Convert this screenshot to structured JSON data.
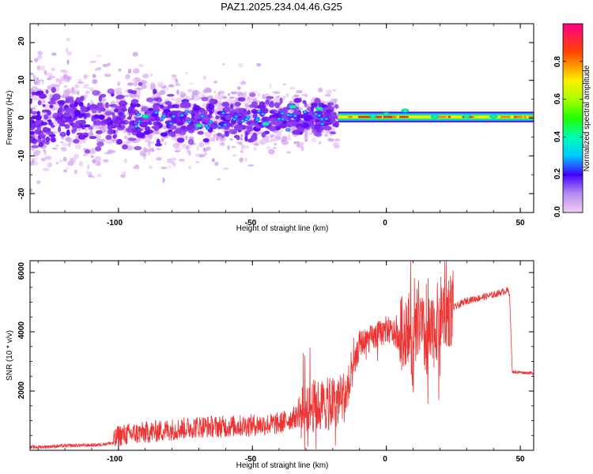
{
  "title": "PAZ1.2025.234.04.46.G25",
  "chart_data": [
    {
      "type": "heatmap",
      "title": "",
      "xlabel": "Height of straight line (km)",
      "ylabel": "Frequency (Hz)",
      "xlim": [
        -133,
        55
      ],
      "ylim": [
        -25,
        25
      ],
      "xticks": [
        -100,
        -50,
        0,
        50
      ],
      "xtick_labels": [
        "-100",
        "-50",
        "0",
        "50"
      ],
      "yticks": [
        -20,
        -10,
        0,
        10,
        20
      ],
      "ytick_labels": [
        "-20",
        "-10",
        "0",
        "10",
        "20"
      ],
      "description_of_structure": {
        "narrow_band": {
          "x_from": -18,
          "x_to": 55,
          "frequency": 0.3,
          "half_width": 1.2
        },
        "scattered_region": {
          "x_from": -133,
          "x_to": -18
        },
        "bright_spots": [
          {
            "x": 30,
            "y": 0.6
          },
          {
            "x": 40,
            "y": 0.4
          },
          {
            "x": 0,
            "y": 1.0
          },
          {
            "x": -5,
            "y": 0.6
          },
          {
            "x": 7,
            "y": 2.0
          },
          {
            "x": 18,
            "y": 0.4
          },
          {
            "x": -25,
            "y": 2.5
          },
          {
            "x": -70,
            "y": -2.0
          },
          {
            "x": -90,
            "y": 0.5
          },
          {
            "x": -45,
            "y": -1.5
          },
          {
            "x": -35,
            "y": 3.0
          }
        ]
      },
      "colorbar": {
        "label": "Normalized spectral amplitude",
        "range": [
          0,
          1
        ],
        "ticks": [
          0.0,
          0.2,
          0.4,
          0.6,
          0.8
        ],
        "tick_labels": [
          "0.0",
          "0.2",
          "0.4",
          "0.6",
          "0.8"
        ]
      }
    },
    {
      "type": "line",
      "title": "",
      "xlabel": "Height of straight line (km)",
      "ylabel": "SNR (10 * v/v)",
      "xlim": [
        -133,
        55
      ],
      "ylim": [
        0,
        6400
      ],
      "xticks": [
        -100,
        -50,
        0,
        50
      ],
      "xtick_labels": [
        "-100",
        "-50",
        "0",
        "50"
      ],
      "yticks": [
        2000,
        4000,
        6000
      ],
      "ytick_labels": [
        "2000",
        "4000",
        "6000"
      ],
      "series": [
        {
          "name": "SNR",
          "color": "#ee3333",
          "x": [
            -133,
            -120,
            -108,
            -102,
            -100,
            -90,
            -80,
            -70,
            -60,
            -50,
            -40,
            -32,
            -30,
            -25,
            -20,
            -16,
            -14,
            -10,
            -5,
            0,
            5,
            8,
            10,
            12,
            14,
            16,
            20,
            25,
            30,
            35,
            40,
            45,
            46,
            47,
            55
          ],
          "values": [
            100,
            150,
            180,
            250,
            500,
            600,
            700,
            800,
            800,
            850,
            900,
            1200,
            1500,
            1500,
            1600,
            1800,
            2000,
            3600,
            3800,
            4100,
            3800,
            4300,
            3200,
            4500,
            3800,
            3600,
            4600,
            4800,
            5050,
            5150,
            5250,
            5400,
            5300,
            2650,
            2600
          ]
        }
      ]
    }
  ]
}
